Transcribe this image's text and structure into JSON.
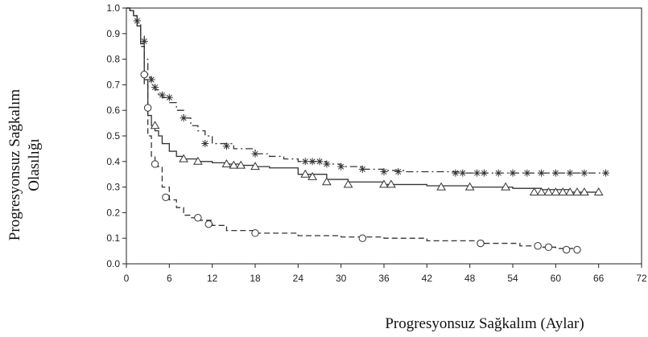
{
  "chart_data": {
    "type": "line",
    "subtype": "kaplan-meier step",
    "xlabel": "Progresyonsuz Sağkalım (Aylar)",
    "ylabel_line1": "Progresyonsuz Sağkalım",
    "ylabel_line2": "Olasılığı",
    "xlim": [
      0,
      72
    ],
    "ylim": [
      0.0,
      1.0
    ],
    "xticks": [
      "0",
      "6",
      "12",
      "18",
      "24",
      "30",
      "36",
      "42",
      "48",
      "54",
      "60",
      "66",
      "72"
    ],
    "yticks": [
      "0.0",
      "0.1",
      "0.2",
      "0.3",
      "0.4",
      "0.5",
      "0.6",
      "0.7",
      "0.8",
      "0.9",
      "1.0"
    ],
    "grid": false,
    "series": [
      {
        "style": "dash-dot",
        "censor_marker": "asterisk",
        "color": "#333333",
        "x": [
          0,
          0.5,
          1.0,
          1.5,
          2.0,
          2.5,
          3.0,
          3.5,
          4.0,
          4.5,
          5.0,
          6.0,
          7.0,
          8.0,
          9.0,
          10.0,
          11.0,
          12.0,
          15.0,
          18.0,
          20.0,
          22.0,
          24.0,
          28.0,
          30.0,
          33.0,
          36.0,
          39.0,
          42.0,
          47.0,
          50.0,
          60.0,
          67.0
        ],
        "y": [
          1.0,
          0.99,
          0.97,
          0.94,
          0.89,
          0.8,
          0.73,
          0.7,
          0.68,
          0.66,
          0.65,
          0.63,
          0.6,
          0.57,
          0.54,
          0.52,
          0.5,
          0.47,
          0.45,
          0.43,
          0.42,
          0.41,
          0.4,
          0.39,
          0.38,
          0.37,
          0.365,
          0.36,
          0.36,
          0.355,
          0.355,
          0.355,
          0.355
        ],
        "censored": [
          [
            1.5,
            0.95
          ],
          [
            2.5,
            0.87
          ],
          [
            3.5,
            0.72
          ],
          [
            4.0,
            0.69
          ],
          [
            5.0,
            0.66
          ],
          [
            6.0,
            0.65
          ],
          [
            8.0,
            0.57
          ],
          [
            11.0,
            0.47
          ],
          [
            14.0,
            0.46
          ],
          [
            18.0,
            0.43
          ],
          [
            25.0,
            0.4
          ],
          [
            26.0,
            0.4
          ],
          [
            27.0,
            0.4
          ],
          [
            28.0,
            0.39
          ],
          [
            30.0,
            0.38
          ],
          [
            33.0,
            0.37
          ],
          [
            36.0,
            0.36
          ],
          [
            38.0,
            0.36
          ],
          [
            46.0,
            0.355
          ],
          [
            47.0,
            0.355
          ],
          [
            49.0,
            0.355
          ],
          [
            50.0,
            0.355
          ],
          [
            52.0,
            0.355
          ],
          [
            54.0,
            0.355
          ],
          [
            56.0,
            0.355
          ],
          [
            58.0,
            0.355
          ],
          [
            60.0,
            0.355
          ],
          [
            62.0,
            0.355
          ],
          [
            64.0,
            0.355
          ],
          [
            67.0,
            0.355
          ]
        ]
      },
      {
        "style": "solid",
        "censor_marker": "triangle",
        "color": "#333333",
        "x": [
          0,
          0.5,
          1.0,
          1.5,
          2.0,
          2.5,
          3.0,
          3.5,
          4.0,
          4.5,
          5.0,
          6.0,
          7.0,
          8.0,
          10.0,
          12.0,
          14.0,
          16.0,
          18.0,
          20.0,
          24.0,
          28.0,
          31.0,
          36.0,
          42.0,
          48.0,
          54.0,
          58.0,
          62.0,
          66.0
        ],
        "y": [
          1.0,
          0.99,
          0.97,
          0.93,
          0.86,
          0.72,
          0.58,
          0.54,
          0.52,
          0.5,
          0.47,
          0.44,
          0.42,
          0.41,
          0.4,
          0.395,
          0.39,
          0.385,
          0.38,
          0.375,
          0.35,
          0.33,
          0.32,
          0.31,
          0.305,
          0.3,
          0.295,
          0.29,
          0.28,
          0.28
        ],
        "censored": [
          [
            4.0,
            0.54
          ],
          [
            8.0,
            0.41
          ],
          [
            10.0,
            0.4
          ],
          [
            14.0,
            0.39
          ],
          [
            15.0,
            0.385
          ],
          [
            16.0,
            0.385
          ],
          [
            18.0,
            0.38
          ],
          [
            25.0,
            0.35
          ],
          [
            26.0,
            0.34
          ],
          [
            28.0,
            0.32
          ],
          [
            31.0,
            0.31
          ],
          [
            36.0,
            0.31
          ],
          [
            37.0,
            0.31
          ],
          [
            44.0,
            0.3
          ],
          [
            48.0,
            0.3
          ],
          [
            53.0,
            0.3
          ],
          [
            57.0,
            0.28
          ],
          [
            58.0,
            0.28
          ],
          [
            59.0,
            0.28
          ],
          [
            60.0,
            0.28
          ],
          [
            61.0,
            0.28
          ],
          [
            62.0,
            0.28
          ],
          [
            63.0,
            0.28
          ],
          [
            64.0,
            0.28
          ],
          [
            66.0,
            0.28
          ]
        ]
      },
      {
        "style": "dashed",
        "censor_marker": "circle",
        "color": "#333333",
        "x": [
          0,
          0.5,
          1.0,
          1.5,
          2.0,
          2.5,
          3.0,
          3.5,
          4.0,
          5.0,
          6.0,
          7.0,
          8.0,
          9.0,
          10.0,
          12.0,
          14.0,
          18.0,
          24.0,
          30.0,
          36.0,
          42.0,
          50.0,
          55.0,
          58.0,
          60.0,
          63.0
        ],
        "y": [
          1.0,
          0.99,
          0.97,
          0.93,
          0.85,
          0.7,
          0.5,
          0.42,
          0.38,
          0.3,
          0.25,
          0.22,
          0.19,
          0.18,
          0.17,
          0.15,
          0.13,
          0.12,
          0.11,
          0.105,
          0.1,
          0.09,
          0.08,
          0.07,
          0.065,
          0.06,
          0.055
        ],
        "censored": [
          [
            2.5,
            0.74
          ],
          [
            3.0,
            0.61
          ],
          [
            4.0,
            0.39
          ],
          [
            5.5,
            0.26
          ],
          [
            10.0,
            0.18
          ],
          [
            11.5,
            0.155
          ],
          [
            18.0,
            0.12
          ],
          [
            33.0,
            0.1
          ],
          [
            49.5,
            0.08
          ],
          [
            57.5,
            0.07
          ],
          [
            59.0,
            0.065
          ],
          [
            61.5,
            0.055
          ],
          [
            63.0,
            0.055
          ]
        ]
      }
    ]
  }
}
